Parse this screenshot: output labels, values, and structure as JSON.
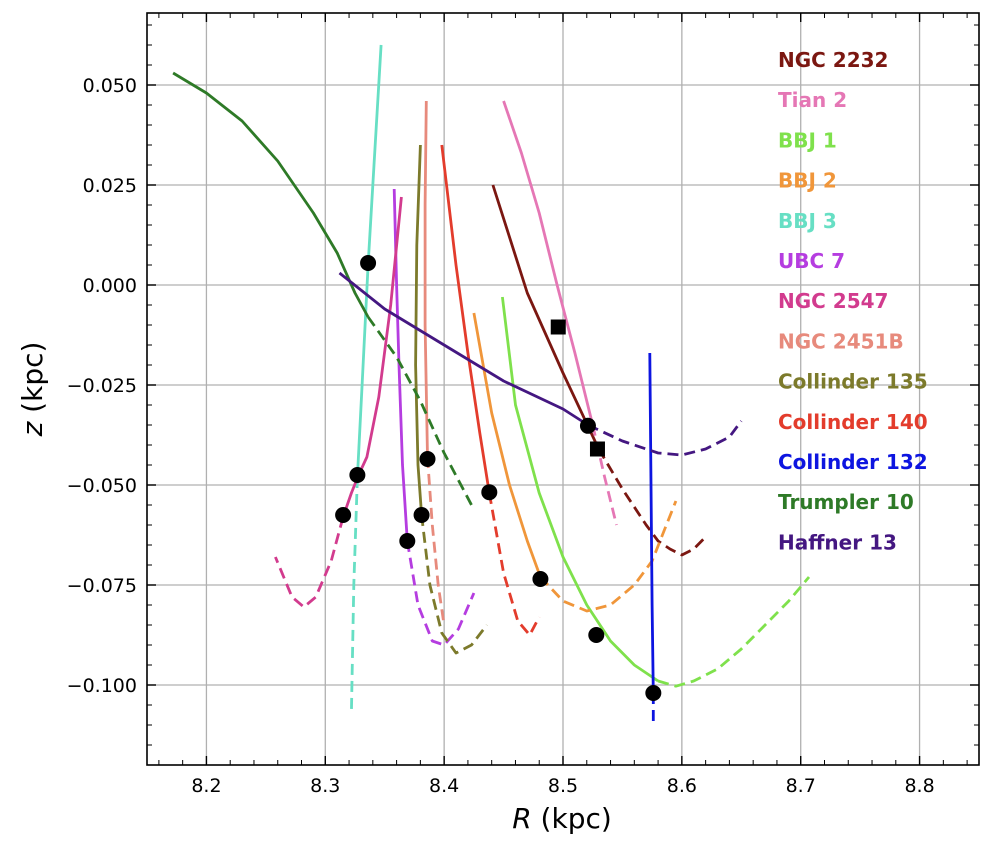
{
  "chart_data": {
    "type": "line",
    "xlabel_italic": "R",
    "xlabel_rest": " (kpc)",
    "ylabel_italic": "z",
    "ylabel_rest": " (kpc)",
    "xlim": [
      8.15,
      8.85
    ],
    "ylim": [
      -0.12,
      0.068
    ],
    "xticks": [
      8.2,
      8.3,
      8.4,
      8.5,
      8.6,
      8.7,
      8.8
    ],
    "xtick_labels": [
      "8.2",
      "8.3",
      "8.4",
      "8.5",
      "8.6",
      "8.7",
      "8.8"
    ],
    "yticks": [
      0.05,
      0.025,
      0.0,
      -0.025,
      -0.05,
      -0.075,
      -0.1
    ],
    "ytick_labels": [
      "0.050",
      "0.025",
      "0.000",
      "−0.025",
      "−0.050",
      "−0.075",
      "−0.100"
    ],
    "grid": true,
    "legend_position": "top-right",
    "series": [
      {
        "name": "NGC 2232",
        "color": "#7b1711",
        "solid": [
          [
            8.441,
            0.025
          ],
          [
            8.47,
            -0.002
          ],
          [
            8.5,
            -0.022
          ],
          [
            8.53,
            -0.041
          ]
        ],
        "dashed": [
          [
            8.53,
            -0.041
          ],
          [
            8.55,
            -0.051
          ],
          [
            8.57,
            -0.06
          ],
          [
            8.58,
            -0.064
          ],
          [
            8.59,
            -0.066
          ],
          [
            8.6,
            -0.0675
          ],
          [
            8.61,
            -0.066
          ],
          [
            8.62,
            -0.063
          ]
        ],
        "markers": [
          {
            "x": 8.529,
            "y": -0.041,
            "shape": "square"
          }
        ]
      },
      {
        "name": "Tian 2",
        "color": "#e577b5",
        "solid": [
          [
            8.45,
            0.046
          ],
          [
            8.465,
            0.033
          ],
          [
            8.48,
            0.018
          ],
          [
            8.495,
            0.0
          ],
          [
            8.51,
            -0.017
          ],
          [
            8.525,
            -0.035
          ]
        ],
        "dashed": [
          [
            8.525,
            -0.035
          ],
          [
            8.535,
            -0.048
          ],
          [
            8.545,
            -0.06
          ]
        ],
        "markers": [
          {
            "x": 8.496,
            "y": -0.0105,
            "shape": "square"
          }
        ]
      },
      {
        "name": "BBJ 1",
        "color": "#7fe14c",
        "solid": [
          [
            8.449,
            -0.003
          ],
          [
            8.46,
            -0.03
          ],
          [
            8.48,
            -0.052
          ],
          [
            8.5,
            -0.068
          ],
          [
            8.52,
            -0.08
          ],
          [
            8.54,
            -0.089
          ],
          [
            8.56,
            -0.095
          ],
          [
            8.58,
            -0.099
          ]
        ],
        "dashed": [
          [
            8.58,
            -0.099
          ],
          [
            8.595,
            -0.1003
          ],
          [
            8.61,
            -0.099
          ],
          [
            8.63,
            -0.096
          ],
          [
            8.65,
            -0.091
          ],
          [
            8.67,
            -0.085
          ],
          [
            8.69,
            -0.079
          ],
          [
            8.707,
            -0.073
          ]
        ],
        "markers": [
          {
            "x": 8.528,
            "y": -0.0875,
            "shape": "circle"
          }
        ]
      },
      {
        "name": "BBJ 2",
        "color": "#f0963a",
        "solid": [
          [
            8.425,
            -0.007
          ],
          [
            8.44,
            -0.032
          ],
          [
            8.455,
            -0.05
          ],
          [
            8.47,
            -0.064
          ],
          [
            8.481,
            -0.073
          ]
        ],
        "dashed": [
          [
            8.481,
            -0.073
          ],
          [
            8.5,
            -0.079
          ],
          [
            8.52,
            -0.0815
          ],
          [
            8.54,
            -0.08
          ],
          [
            8.56,
            -0.075
          ],
          [
            8.575,
            -0.069
          ],
          [
            8.595,
            -0.054
          ]
        ],
        "markers": [
          {
            "x": 8.481,
            "y": -0.0735,
            "shape": "circle"
          }
        ]
      },
      {
        "name": "BBJ 3",
        "color": "#67dfc4",
        "solid": [
          [
            8.347,
            0.06
          ],
          [
            8.341,
            0.03
          ],
          [
            8.336,
            0.005
          ],
          [
            8.331,
            -0.025
          ],
          [
            8.327,
            -0.048
          ]
        ],
        "dashed": [
          [
            8.327,
            -0.048
          ],
          [
            8.324,
            -0.075
          ],
          [
            8.322,
            -0.107
          ]
        ],
        "markers": [
          {
            "x": 8.336,
            "y": 0.0055,
            "shape": "circle"
          }
        ]
      },
      {
        "name": "UBC 7",
        "color": "#b53de0",
        "solid": [
          [
            8.358,
            0.024
          ],
          [
            8.36,
            0.0
          ],
          [
            8.362,
            -0.02
          ],
          [
            8.365,
            -0.045
          ],
          [
            8.369,
            -0.064
          ]
        ],
        "dashed": [
          [
            8.369,
            -0.064
          ],
          [
            8.378,
            -0.08
          ],
          [
            8.39,
            -0.089
          ],
          [
            8.4,
            -0.09
          ],
          [
            8.412,
            -0.086
          ],
          [
            8.425,
            -0.077
          ]
        ],
        "markers": [
          {
            "x": 8.369,
            "y": -0.064,
            "shape": "circle"
          }
        ]
      },
      {
        "name": "NGC 2547",
        "color": "#d23b8e",
        "solid": [
          [
            8.364,
            0.022
          ],
          [
            8.355,
            -0.005
          ],
          [
            8.345,
            -0.028
          ],
          [
            8.335,
            -0.043
          ],
          [
            8.328,
            -0.0475
          ],
          [
            8.322,
            -0.052
          ],
          [
            8.315,
            -0.058
          ]
        ],
        "dashed": [
          [
            8.315,
            -0.058
          ],
          [
            8.305,
            -0.069
          ],
          [
            8.292,
            -0.078
          ],
          [
            8.282,
            -0.0805
          ],
          [
            8.272,
            -0.078
          ],
          [
            8.258,
            -0.068
          ]
        ],
        "markers": [
          {
            "x": 8.327,
            "y": -0.0475,
            "shape": "circle"
          },
          {
            "x": 8.315,
            "y": -0.0575,
            "shape": "circle"
          }
        ]
      },
      {
        "name": "NGC 2451B",
        "color": "#e78a7c",
        "solid": [
          [
            8.385,
            0.046
          ],
          [
            8.384,
            0.02
          ],
          [
            8.384,
            -0.01
          ],
          [
            8.386,
            -0.043
          ]
        ],
        "dashed": [
          [
            8.386,
            -0.043
          ],
          [
            8.39,
            -0.06
          ],
          [
            8.395,
            -0.075
          ],
          [
            8.4,
            -0.085
          ]
        ],
        "markers": [
          {
            "x": 8.386,
            "y": -0.0435,
            "shape": "circle"
          }
        ]
      },
      {
        "name": "Collinder 135",
        "color": "#7c7a2b",
        "solid": [
          [
            8.38,
            0.035
          ],
          [
            8.377,
            0.01
          ],
          [
            8.376,
            -0.02
          ],
          [
            8.378,
            -0.045
          ],
          [
            8.381,
            -0.0575
          ]
        ],
        "dashed": [
          [
            8.381,
            -0.0575
          ],
          [
            8.388,
            -0.075
          ],
          [
            8.398,
            -0.087
          ],
          [
            8.41,
            -0.092
          ],
          [
            8.423,
            -0.09
          ],
          [
            8.436,
            -0.085
          ]
        ],
        "markers": [
          {
            "x": 8.381,
            "y": -0.0575,
            "shape": "circle"
          }
        ]
      },
      {
        "name": "Collinder 140",
        "color": "#e33c2c",
        "solid": [
          [
            8.398,
            0.035
          ],
          [
            8.41,
            0.005
          ],
          [
            8.42,
            -0.017
          ],
          [
            8.43,
            -0.037
          ],
          [
            8.438,
            -0.052
          ]
        ],
        "dashed": [
          [
            8.438,
            -0.052
          ],
          [
            8.45,
            -0.072
          ],
          [
            8.462,
            -0.084
          ],
          [
            8.472,
            -0.0875
          ],
          [
            8.48,
            -0.083
          ]
        ],
        "markers": [
          {
            "x": 8.438,
            "y": -0.0518,
            "shape": "circle"
          }
        ]
      },
      {
        "name": "Collinder 132",
        "color": "#0d15e0",
        "solid": [
          [
            8.573,
            -0.017
          ],
          [
            8.574,
            -0.05
          ],
          [
            8.575,
            -0.08
          ],
          [
            8.576,
            -0.102
          ]
        ],
        "dashed": [
          [
            8.576,
            -0.102
          ],
          [
            8.576,
            -0.11
          ]
        ],
        "markers": [
          {
            "x": 8.576,
            "y": -0.102,
            "shape": "circle"
          }
        ]
      },
      {
        "name": "Trumpler 10",
        "color": "#2e7a27",
        "solid": [
          [
            8.172,
            0.053
          ],
          [
            8.2,
            0.048
          ],
          [
            8.23,
            0.041
          ],
          [
            8.26,
            0.031
          ],
          [
            8.29,
            0.018
          ],
          [
            8.31,
            0.008
          ],
          [
            8.325,
            -0.002
          ],
          [
            8.336,
            -0.008
          ]
        ],
        "dashed": [
          [
            8.336,
            -0.008
          ],
          [
            8.36,
            -0.018
          ],
          [
            8.38,
            -0.029
          ],
          [
            8.4,
            -0.042
          ],
          [
            8.423,
            -0.055
          ]
        ],
        "markers": []
      },
      {
        "name": "Haffner 13",
        "color": "#441781",
        "solid": [
          [
            8.312,
            0.003
          ],
          [
            8.35,
            -0.006
          ],
          [
            8.4,
            -0.015
          ],
          [
            8.45,
            -0.024
          ],
          [
            8.5,
            -0.031
          ],
          [
            8.521,
            -0.035
          ]
        ],
        "dashed": [
          [
            8.521,
            -0.035
          ],
          [
            8.55,
            -0.039
          ],
          [
            8.58,
            -0.042
          ],
          [
            8.6,
            -0.0425
          ],
          [
            8.62,
            -0.041
          ],
          [
            8.64,
            -0.038
          ],
          [
            8.65,
            -0.034
          ]
        ],
        "markers": [
          {
            "x": 8.521,
            "y": -0.0352,
            "shape": "circle"
          }
        ]
      }
    ]
  }
}
